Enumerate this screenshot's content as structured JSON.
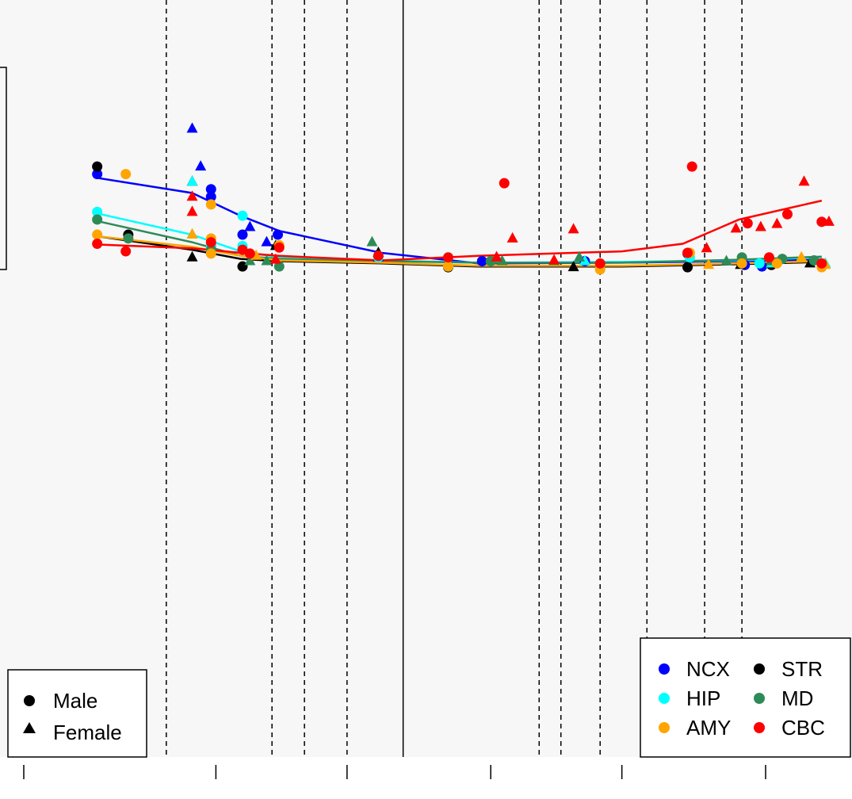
{
  "chart_data": {
    "type": "scatter",
    "title": "",
    "xlabel": "",
    "ylabel": "",
    "x_scale": "log",
    "x_ticks": [
      {
        "value": 20,
        "label": ""
      },
      {
        "value": 100,
        "label": ""
      },
      {
        "value": 300,
        "label": ""
      },
      {
        "value": 1000,
        "label": ""
      },
      {
        "value": 3000,
        "label": ""
      },
      {
        "value": 10000,
        "label": ""
      }
    ],
    "y_range": [
      0,
      1
    ],
    "grid": false,
    "background": "#f7f7f7",
    "vertical_lines": {
      "dashed": [
        66,
        160,
        210,
        300,
        1500,
        1800,
        2500,
        3700,
        6000,
        8200
      ],
      "solid": [
        480
      ]
    },
    "shape_legend": {
      "position": "bottom-left",
      "items": [
        {
          "label": "Male",
          "shape": "circle"
        },
        {
          "label": "Female",
          "shape": "triangle"
        }
      ]
    },
    "region_legend": {
      "position": "bottom-right",
      "items": [
        {
          "label": "NCX",
          "color": "#0000ff"
        },
        {
          "label": "STR",
          "color": "#000000"
        },
        {
          "label": "HIP",
          "color": "#00ffff"
        },
        {
          "label": "MD",
          "color": "#2e8b57"
        },
        {
          "label": "AMY",
          "color": "#ffa500"
        },
        {
          "label": "CBC",
          "color": "#ff0000"
        }
      ]
    },
    "series": [
      {
        "key": "NCX",
        "color": "#0000ff",
        "trend": [
          [
            37,
            0.765
          ],
          [
            82,
            0.745
          ],
          [
            123,
            0.715
          ],
          [
            170,
            0.695
          ],
          [
            400,
            0.666
          ],
          [
            900,
            0.652
          ],
          [
            3000,
            0.653
          ],
          [
            8000,
            0.655
          ],
          [
            16000,
            0.657
          ]
        ],
        "points": [
          [
            37,
            0.77,
            "m"
          ],
          [
            82,
            0.83,
            "f"
          ],
          [
            88,
            0.78,
            "f"
          ],
          [
            96,
            0.74,
            "m"
          ],
          [
            96,
            0.75,
            "m"
          ],
          [
            125,
            0.69,
            "m"
          ],
          [
            133,
            0.7,
            "f"
          ],
          [
            153,
            0.68,
            "f"
          ],
          [
            168,
            0.69,
            "m"
          ],
          [
            390,
            0.66,
            "f"
          ],
          [
            930,
            0.655,
            "m"
          ],
          [
            2200,
            0.655,
            "m"
          ],
          [
            5200,
            0.665,
            "m"
          ],
          [
            8400,
            0.65,
            "m"
          ],
          [
            9700,
            0.648,
            "m"
          ],
          [
            10500,
            0.652,
            "f"
          ]
        ]
      },
      {
        "key": "STR",
        "color": "#000000",
        "trend": [
          [
            37,
            0.688
          ],
          [
            82,
            0.67
          ],
          [
            123,
            0.658
          ],
          [
            170,
            0.655
          ],
          [
            400,
            0.652
          ],
          [
            900,
            0.648
          ],
          [
            3000,
            0.648
          ],
          [
            8000,
            0.651
          ],
          [
            16000,
            0.654
          ]
        ],
        "points": [
          [
            37,
            0.78,
            "m"
          ],
          [
            48,
            0.69,
            "m"
          ],
          [
            82,
            0.76,
            "f"
          ],
          [
            82,
            0.66,
            "f"
          ],
          [
            96,
            0.675,
            "m"
          ],
          [
            125,
            0.648,
            "m"
          ],
          [
            165,
            0.675,
            "f"
          ],
          [
            390,
            0.666,
            "f"
          ],
          [
            700,
            0.647,
            "m"
          ],
          [
            1050,
            0.66,
            "f"
          ],
          [
            2000,
            0.647,
            "f"
          ],
          [
            5200,
            0.647,
            "m"
          ],
          [
            8100,
            0.65,
            "f"
          ],
          [
            10500,
            0.65,
            "m"
          ],
          [
            14500,
            0.652,
            "f"
          ]
        ]
      },
      {
        "key": "HIP",
        "color": "#00ffff",
        "trend": [
          [
            37,
            0.718
          ],
          [
            82,
            0.69
          ],
          [
            123,
            0.668
          ],
          [
            170,
            0.66
          ],
          [
            400,
            0.656
          ],
          [
            900,
            0.653
          ],
          [
            3000,
            0.654
          ],
          [
            8000,
            0.656
          ],
          [
            16000,
            0.66
          ]
        ],
        "points": [
          [
            37,
            0.72,
            "m"
          ],
          [
            82,
            0.76,
            "f"
          ],
          [
            96,
            0.675,
            "m"
          ],
          [
            125,
            0.715,
            "m"
          ],
          [
            125,
            0.675,
            "m"
          ],
          [
            390,
            0.66,
            "m"
          ],
          [
            700,
            0.648,
            "m"
          ],
          [
            2200,
            0.655,
            "f"
          ],
          [
            5300,
            0.66,
            "m"
          ],
          [
            9500,
            0.652,
            "m"
          ],
          [
            10500,
            0.652,
            "f"
          ],
          [
            16500,
            0.652,
            "f"
          ]
        ]
      },
      {
        "key": "MD",
        "color": "#2e8b57",
        "trend": [
          [
            37,
            0.708
          ],
          [
            82,
            0.68
          ],
          [
            123,
            0.662
          ],
          [
            170,
            0.658
          ],
          [
            400,
            0.655
          ],
          [
            900,
            0.653
          ],
          [
            3000,
            0.653
          ],
          [
            8000,
            0.657
          ],
          [
            16000,
            0.661
          ]
        ],
        "points": [
          [
            37,
            0.71,
            "m"
          ],
          [
            48,
            0.685,
            "m"
          ],
          [
            82,
            0.69,
            "f"
          ],
          [
            96,
            0.67,
            "m"
          ],
          [
            133,
            0.655,
            "f"
          ],
          [
            153,
            0.655,
            "f"
          ],
          [
            170,
            0.648,
            "m"
          ],
          [
            370,
            0.68,
            "f"
          ],
          [
            1000,
            0.655,
            "m"
          ],
          [
            1100,
            0.655,
            "f"
          ],
          [
            1700,
            0.655,
            "f"
          ],
          [
            2100,
            0.66,
            "f"
          ],
          [
            7200,
            0.655,
            "f"
          ],
          [
            8200,
            0.66,
            "m"
          ],
          [
            10500,
            0.655,
            "f"
          ],
          [
            11500,
            0.658,
            "m"
          ],
          [
            15000,
            0.656,
            "m"
          ]
        ]
      },
      {
        "key": "AMY",
        "color": "#ffa500",
        "trend": [
          [
            37,
            0.688
          ],
          [
            82,
            0.674
          ],
          [
            123,
            0.662
          ],
          [
            170,
            0.656
          ],
          [
            400,
            0.653
          ],
          [
            900,
            0.649
          ],
          [
            3000,
            0.649
          ],
          [
            8000,
            0.652
          ],
          [
            16000,
            0.655
          ]
        ],
        "points": [
          [
            37,
            0.69,
            "m"
          ],
          [
            47,
            0.77,
            "m"
          ],
          [
            82,
            0.69,
            "f"
          ],
          [
            96,
            0.73,
            "m"
          ],
          [
            96,
            0.685,
            "m"
          ],
          [
            96,
            0.665,
            "m"
          ],
          [
            140,
            0.662,
            "f"
          ],
          [
            170,
            0.676,
            "m"
          ],
          [
            700,
            0.648,
            "m"
          ],
          [
            2500,
            0.644,
            "m"
          ],
          [
            5300,
            0.666,
            "m"
          ],
          [
            6200,
            0.65,
            "f"
          ],
          [
            8200,
            0.652,
            "m"
          ],
          [
            11000,
            0.652,
            "m"
          ],
          [
            13500,
            0.66,
            "f"
          ],
          [
            16000,
            0.647,
            "m"
          ],
          [
            16500,
            0.65,
            "f"
          ]
        ]
      },
      {
        "key": "CBC",
        "color": "#ff0000",
        "trend": [
          [
            37,
            0.677
          ],
          [
            82,
            0.672
          ],
          [
            123,
            0.666
          ],
          [
            170,
            0.662
          ],
          [
            400,
            0.656
          ],
          [
            900,
            0.662
          ],
          [
            3000,
            0.668
          ],
          [
            5000,
            0.678
          ],
          [
            8000,
            0.71
          ],
          [
            16000,
            0.735
          ]
        ],
        "points": [
          [
            37,
            0.678,
            "m"
          ],
          [
            47,
            0.668,
            "m"
          ],
          [
            82,
            0.74,
            "f"
          ],
          [
            82,
            0.72,
            "f"
          ],
          [
            96,
            0.68,
            "m"
          ],
          [
            125,
            0.67,
            "m"
          ],
          [
            133,
            0.665,
            "m"
          ],
          [
            170,
            0.673,
            "m"
          ],
          [
            165,
            0.657,
            "f"
          ],
          [
            390,
            0.662,
            "m"
          ],
          [
            700,
            0.66,
            "m"
          ],
          [
            1050,
            0.66,
            "f"
          ],
          [
            1120,
            0.758,
            "m"
          ],
          [
            1200,
            0.685,
            "f"
          ],
          [
            1700,
            0.656,
            "f"
          ],
          [
            2000,
            0.697,
            "f"
          ],
          [
            2500,
            0.652,
            "m"
          ],
          [
            5200,
            0.666,
            "m"
          ],
          [
            5400,
            0.78,
            "m"
          ],
          [
            6100,
            0.672,
            "f"
          ],
          [
            7800,
            0.698,
            "f"
          ],
          [
            8600,
            0.705,
            "m"
          ],
          [
            9600,
            0.7,
            "f"
          ],
          [
            10300,
            0.66,
            "m"
          ],
          [
            11000,
            0.704,
            "f"
          ],
          [
            12000,
            0.717,
            "m"
          ],
          [
            13800,
            0.76,
            "f"
          ],
          [
            16000,
            0.707,
            "m"
          ],
          [
            16000,
            0.652,
            "m"
          ],
          [
            17000,
            0.707,
            "f"
          ]
        ]
      }
    ]
  }
}
